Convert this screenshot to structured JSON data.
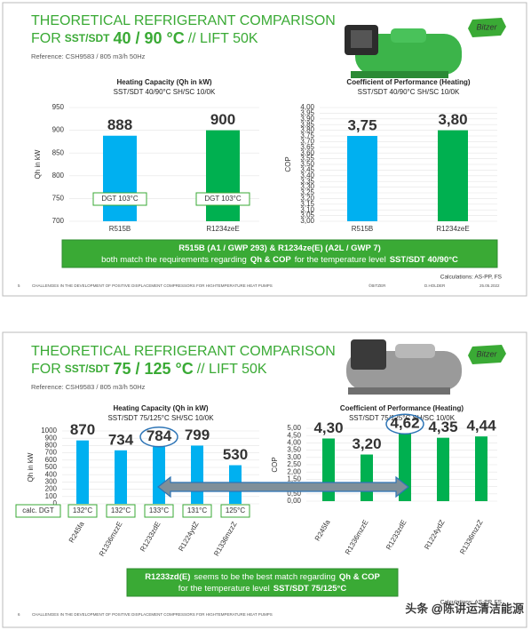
{
  "logo": "Bitzer",
  "watermark": "头条 @陈讲运清洁能源",
  "slides": [
    {
      "title": "THEORETICAL REFRIGERANT COMPARISON",
      "title_parts": [
        "FOR",
        "SST/SDT",
        "40 / 90 °C",
        "// LIFT 50K"
      ],
      "reference": "Reference: CSH9583 / 805 m3/h 50Hz",
      "banner": [
        [
          "R515B (A1 / GWP 293) & R1234ze(E) (A2L / GWP 7)"
        ],
        [
          "both match the requirements regarding",
          "Qh & COP",
          "for the temperature level",
          "SST/SDT 40/90°C"
        ]
      ],
      "calc": "Calculations: AS-PP, FS",
      "footer": {
        "page": "5",
        "text": "CHALLENGES IN THE DEVELOPMENT OF POSITIVE DISPLACEMENT COMPRESSORS FOR HIGHTEMPERATURE HEAT PUMPS",
        "brand": "©BITZER",
        "author": "D.HOLDER",
        "date": "25.05.2022"
      }
    },
    {
      "title": "THEORETICAL REFRIGERANT COMPARISON",
      "title_parts": [
        "FOR",
        "SST/SDT",
        "75 / 125 °C",
        "// LIFT 50K"
      ],
      "reference": "Reference: CSH9583 / 805 m3/h 50Hz",
      "banner": [
        [
          "R1233zd(E)",
          "seems to be the best match regarding",
          "Qh & COP"
        ],
        [
          "for the temperature level",
          "SST/SDT 75/125°C"
        ]
      ],
      "calc": "Calculations: AS-PP, FS",
      "footer": {
        "page": "6",
        "text": "CHALLENGES IN THE DEVELOPMENT OF POSITIVE DISPLACEMENT COMPRESSORS FOR HIGHTEMPERATURE HEAT PUMPS"
      }
    }
  ],
  "chart_data": [
    {
      "type": "bar",
      "title": "Heating Capacity (Qh in kW)",
      "subtitle": "SST/SDT 40/90°C SH/SC 10/0K",
      "ylabel": "Qh in kW",
      "categories": [
        "R515B",
        "R1234zeE"
      ],
      "values": [
        888,
        900
      ],
      "colors": [
        "#00b0f0",
        "#00b050"
      ],
      "annotations": [
        "DGT 103°C",
        "DGT 103°C"
      ],
      "ylim": [
        700,
        950
      ],
      "yticks": [
        700,
        750,
        800,
        850,
        900,
        950
      ],
      "grid": true
    },
    {
      "type": "bar",
      "title": "Coefficient of Performance (Heating)",
      "subtitle": "SST/SDT 40/90°C SH/SC 10/0K",
      "ylabel": "COP",
      "categories": [
        "R515B",
        "R1234zeE"
      ],
      "values": [
        3.75,
        3.8
      ],
      "value_labels": [
        "3,75",
        "3,80"
      ],
      "colors": [
        "#00b0f0",
        "#00b050"
      ],
      "ylim": [
        3.0,
        4.0
      ],
      "yticks": [
        {
          "value": 3.0,
          "label": "3,00"
        },
        {
          "value": 3.05,
          "label": "3,05"
        },
        {
          "value": 3.1,
          "label": "3,10"
        },
        {
          "value": 3.15,
          "label": "3,15"
        },
        {
          "value": 3.2,
          "label": "3,20"
        },
        {
          "value": 3.25,
          "label": "3,25"
        },
        {
          "value": 3.3,
          "label": "3,30"
        },
        {
          "value": 3.35,
          "label": "3,35"
        },
        {
          "value": 3.4,
          "label": "3,40"
        },
        {
          "value": 3.45,
          "label": "3,45"
        },
        {
          "value": 3.5,
          "label": "3,50"
        },
        {
          "value": 3.55,
          "label": "3,55"
        },
        {
          "value": 3.6,
          "label": "3,60"
        },
        {
          "value": 3.65,
          "label": "3,65"
        },
        {
          "value": 3.7,
          "label": "3,70"
        },
        {
          "value": 3.75,
          "label": "3,75"
        },
        {
          "value": 3.8,
          "label": "3,80"
        },
        {
          "value": 3.85,
          "label": "3,85"
        },
        {
          "value": 3.9,
          "label": "3,90"
        },
        {
          "value": 3.95,
          "label": "3,95"
        },
        {
          "value": 4.0,
          "label": "4,00"
        }
      ],
      "grid": true
    },
    {
      "type": "bar",
      "title": "Heating Capacity (Qh in kW)",
      "subtitle": "SST/SDT 75/125°C SH/SC 10/0K",
      "ylabel": "Qh in kW",
      "categories": [
        "R245fa",
        "R1336mzzE",
        "R1233zdE",
        "R1224ydZ",
        "R1336mzzZ"
      ],
      "values": [
        870,
        734,
        784,
        799,
        530
      ],
      "colors": [
        "#00b0f0",
        "#00b0f0",
        "#00b0f0",
        "#00b0f0",
        "#00b0f0"
      ],
      "annotation_title": "calc. DGT",
      "annotations": [
        "132°C",
        "132°C",
        "133°C",
        "131°C",
        "125°C"
      ],
      "ylim": [
        0,
        1000
      ],
      "yticks": [
        0,
        100,
        200,
        300,
        400,
        500,
        600,
        700,
        800,
        900,
        1000
      ],
      "grid": true
    },
    {
      "type": "bar",
      "title": "Coefficient of Performance (Heating)",
      "subtitle": "SST/SDT 75/125°C SH/SC 10/0K",
      "ylabel": "COP",
      "categories": [
        "R245fa",
        "R1336mzzE",
        "R1233zdE",
        "R1224ydZ",
        "R1336mzzZ"
      ],
      "values": [
        4.3,
        3.2,
        4.62,
        4.35,
        4.44
      ],
      "value_labels": [
        "4,30",
        "3,20",
        "4,62",
        "4,35",
        "4,44"
      ],
      "colors": [
        "#00b050",
        "#00b050",
        "#00b050",
        "#00b050",
        "#00b050"
      ],
      "ylim": [
        0,
        5
      ],
      "yticks": [
        {
          "value": 0,
          "label": "0,00"
        },
        {
          "value": 0.5,
          "label": "0,50"
        },
        {
          "value": 1,
          "label": "1,00"
        },
        {
          "value": 1.5,
          "label": "1,50"
        },
        {
          "value": 2,
          "label": "2,00"
        },
        {
          "value": 2.5,
          "label": "2,50"
        },
        {
          "value": 3,
          "label": "3,00"
        },
        {
          "value": 3.5,
          "label": "3,50"
        },
        {
          "value": 4,
          "label": "4,00"
        },
        {
          "value": 4.5,
          "label": "4,50"
        },
        {
          "value": 5,
          "label": "5,00"
        }
      ],
      "grid": true
    }
  ]
}
